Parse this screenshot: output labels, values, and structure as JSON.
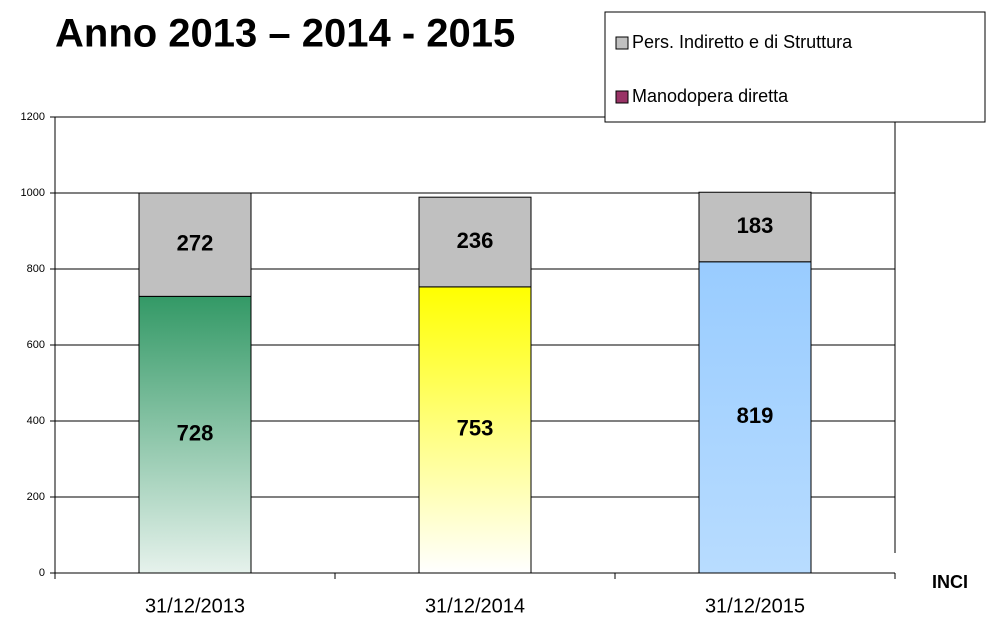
{
  "chart_data": {
    "type": "stacked_bar",
    "title": "Anno 2013 – 2014 - 2015",
    "categories": [
      "31/12/2013",
      "31/12/2014",
      "31/12/2015"
    ],
    "series": [
      {
        "name": "Manodopera diretta",
        "color": "#993366",
        "values": [
          728,
          753,
          819
        ],
        "point_colors": [
          "#339966",
          "#ffff00",
          "#99ccff"
        ],
        "point_colors_bottom": [
          "#e6f2ec",
          "#ffffff",
          "#b8dcff"
        ]
      },
      {
        "name": "Pers. Indiretto e di Struttura",
        "color": "#c0c0c0",
        "values": [
          272,
          236,
          183
        ]
      }
    ],
    "ylim": [
      0,
      1200
    ],
    "yticks": [
      0,
      200,
      400,
      600,
      800,
      1000,
      1200
    ],
    "grid": true,
    "annotation": "INCI"
  }
}
